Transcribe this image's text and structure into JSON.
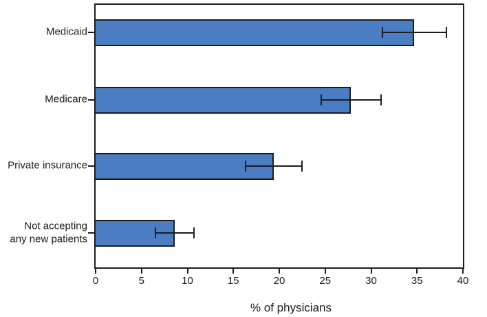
{
  "chart_data": {
    "type": "bar",
    "orientation": "horizontal",
    "title": "",
    "categories": [
      "Medicaid",
      "Medicare",
      "Private insurance",
      "Not accepting\nany new patients"
    ],
    "values": [
      34.7,
      27.8,
      19.4,
      8.6
    ],
    "error_bars": {
      "low": [
        31.2,
        24.6,
        16.3,
        6.5
      ],
      "high": [
        38.2,
        31.1,
        22.5,
        10.7
      ]
    },
    "xlabel": "% of physicians",
    "xlim": [
      0,
      40
    ],
    "x_ticks": [
      0,
      5,
      10,
      15,
      20,
      25,
      30,
      35,
      40
    ],
    "grid": false,
    "legend": false,
    "bar_color": "#4a7dc3",
    "bar_border_color": "#1c1c1c",
    "axis_color": "#1c1c1c",
    "text_color": "#1a1a1a"
  }
}
